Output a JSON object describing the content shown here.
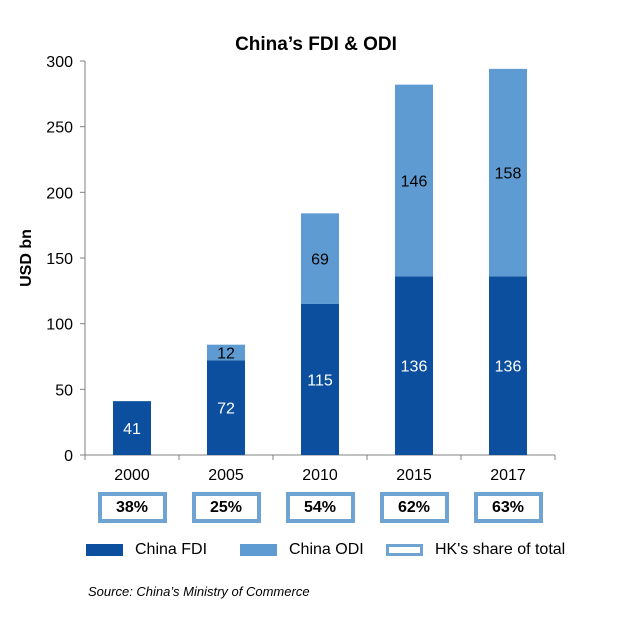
{
  "chart_data": {
    "type": "bar",
    "stacked": true,
    "title": "China’s FDI & ODI",
    "ylabel": "USD bn",
    "xlabel": "",
    "ylim": [
      0,
      300
    ],
    "yticks": [
      0,
      50,
      100,
      150,
      200,
      250,
      300
    ],
    "categories": [
      "2000",
      "2005",
      "2010",
      "2015",
      "2017"
    ],
    "series": [
      {
        "name": "China FDI",
        "color": "#0b4f9e",
        "values": [
          41,
          72,
          115,
          136,
          136
        ]
      },
      {
        "name": "China ODI",
        "color": "#5e9bd3",
        "values": [
          0,
          12,
          69,
          146,
          158
        ]
      }
    ],
    "hk_share": {
      "name": "HK's share of total",
      "values": [
        "38%",
        "25%",
        "54%",
        "62%",
        "63%"
      ],
      "border_color": "#6fa3d1"
    },
    "legend_position": "bottom",
    "grid": false
  },
  "source": "Source: China’s Ministry of Commerce"
}
